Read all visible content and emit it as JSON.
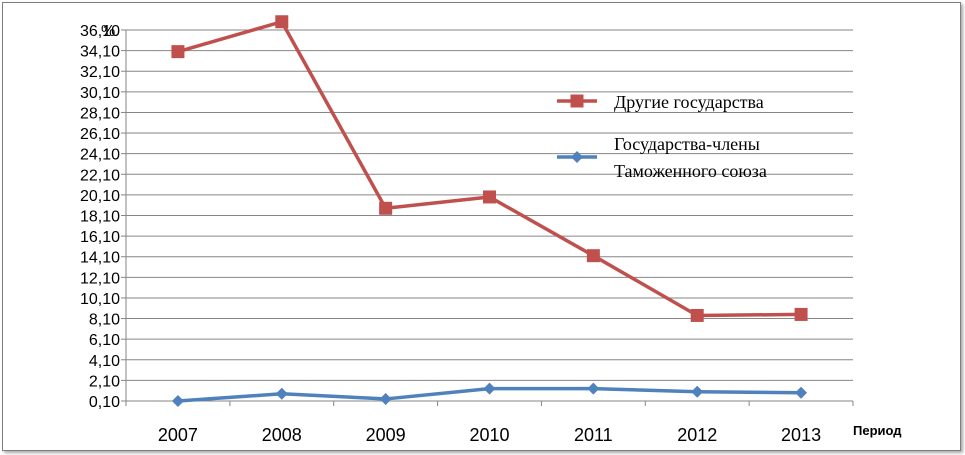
{
  "chart_data": {
    "type": "line",
    "title": "",
    "xlabel": "Период",
    "ylabel": "%",
    "categories": [
      "2007",
      "2008",
      "2009",
      "2010",
      "2011",
      "2012",
      "2013"
    ],
    "y_ticks": [
      "0,10",
      "2,10",
      "4,10",
      "6,10",
      "8,10",
      "10,10",
      "12,10",
      "14,10",
      "16,10",
      "18,10",
      "20,10",
      "22,10",
      "24,10",
      "26,10",
      "28,10",
      "30,10",
      "32,10",
      "34,10",
      "36,10"
    ],
    "ylim": [
      0.1,
      36.1
    ],
    "grid": true,
    "legend_position": "right",
    "series": [
      {
        "name": "Другие государства",
        "values": [
          34.0,
          36.9,
          18.8,
          19.9,
          14.2,
          8.4,
          8.5
        ],
        "color": "#c0504d",
        "marker": "square"
      },
      {
        "name": "Государства-члены Таможенного союза",
        "name_lines": [
          "Государства-члены",
          "Таможенного союза"
        ],
        "values": [
          0.1,
          0.8,
          0.3,
          1.3,
          1.3,
          1.0,
          0.9
        ],
        "color": "#4f81bd",
        "marker": "diamond"
      }
    ]
  }
}
